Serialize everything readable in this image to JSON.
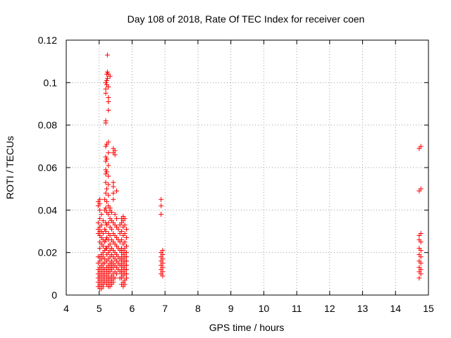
{
  "chart_data": {
    "type": "scatter",
    "title": "Day 108 of 2018, Rate Of TEC Index for receiver coen",
    "xlabel": "GPS time / hours",
    "ylabel": "ROTI / TECUs",
    "xlim": [
      4,
      15
    ],
    "ylim": [
      0,
      0.12
    ],
    "xticks": [
      "4",
      "5",
      "6",
      "7",
      "8",
      "9",
      "10",
      "11",
      "12",
      "13",
      "14",
      "15"
    ],
    "yticks": [
      "0",
      "0.02",
      "0.04",
      "0.06",
      "0.08",
      "0.1",
      "0.12"
    ],
    "grid": true,
    "marker": "+",
    "color": "#ff0000",
    "points": [
      [
        4.97,
        0.004
      ],
      [
        4.97,
        0.006
      ],
      [
        4.97,
        0.008
      ],
      [
        4.97,
        0.01
      ],
      [
        4.97,
        0.012
      ],
      [
        4.97,
        0.015
      ],
      [
        4.97,
        0.018
      ],
      [
        4.97,
        0.029
      ],
      [
        4.97,
        0.031
      ],
      [
        4.97,
        0.034
      ],
      [
        4.97,
        0.042
      ],
      [
        4.97,
        0.044
      ],
      [
        5.02,
        0.003
      ],
      [
        5.02,
        0.005
      ],
      [
        5.02,
        0.007
      ],
      [
        5.02,
        0.009
      ],
      [
        5.02,
        0.011
      ],
      [
        5.02,
        0.013
      ],
      [
        5.02,
        0.016
      ],
      [
        5.02,
        0.018
      ],
      [
        5.02,
        0.022
      ],
      [
        5.02,
        0.025
      ],
      [
        5.02,
        0.028
      ],
      [
        5.02,
        0.03
      ],
      [
        5.02,
        0.032
      ],
      [
        5.02,
        0.036
      ],
      [
        5.02,
        0.04
      ],
      [
        5.02,
        0.043
      ],
      [
        5.02,
        0.045
      ],
      [
        5.07,
        0.003
      ],
      [
        5.07,
        0.004
      ],
      [
        5.07,
        0.006
      ],
      [
        5.07,
        0.008
      ],
      [
        5.07,
        0.01
      ],
      [
        5.07,
        0.012
      ],
      [
        5.07,
        0.014
      ],
      [
        5.07,
        0.017
      ],
      [
        5.07,
        0.019
      ],
      [
        5.07,
        0.024
      ],
      [
        5.07,
        0.027
      ],
      [
        5.07,
        0.03
      ],
      [
        5.07,
        0.033
      ],
      [
        5.07,
        0.038
      ],
      [
        5.12,
        0.004
      ],
      [
        5.12,
        0.005
      ],
      [
        5.12,
        0.007
      ],
      [
        5.12,
        0.009
      ],
      [
        5.12,
        0.011
      ],
      [
        5.12,
        0.013
      ],
      [
        5.12,
        0.015
      ],
      [
        5.12,
        0.018
      ],
      [
        5.12,
        0.02
      ],
      [
        5.12,
        0.023
      ],
      [
        5.12,
        0.026
      ],
      [
        5.12,
        0.029
      ],
      [
        5.12,
        0.035
      ],
      [
        5.17,
        0.006
      ],
      [
        5.17,
        0.008
      ],
      [
        5.17,
        0.01
      ],
      [
        5.17,
        0.012
      ],
      [
        5.17,
        0.015
      ],
      [
        5.17,
        0.017
      ],
      [
        5.17,
        0.021
      ],
      [
        5.17,
        0.025
      ],
      [
        5.17,
        0.031
      ],
      [
        5.17,
        0.04
      ],
      [
        5.17,
        0.045
      ],
      [
        5.2,
        0.022
      ],
      [
        5.2,
        0.026
      ],
      [
        5.2,
        0.03
      ],
      [
        5.2,
        0.034
      ],
      [
        5.2,
        0.041
      ],
      [
        5.2,
        0.048
      ],
      [
        5.2,
        0.053
      ],
      [
        5.2,
        0.057
      ],
      [
        5.2,
        0.059
      ],
      [
        5.2,
        0.063
      ],
      [
        5.2,
        0.065
      ],
      [
        5.2,
        0.07
      ],
      [
        5.2,
        0.081
      ],
      [
        5.2,
        0.082
      ],
      [
        5.2,
        0.095
      ],
      [
        5.2,
        0.097
      ],
      [
        5.2,
        0.1
      ],
      [
        5.23,
        0.005
      ],
      [
        5.23,
        0.007
      ],
      [
        5.23,
        0.009
      ],
      [
        5.23,
        0.011
      ],
      [
        5.23,
        0.013
      ],
      [
        5.23,
        0.016
      ],
      [
        5.23,
        0.019
      ],
      [
        5.23,
        0.022
      ],
      [
        5.23,
        0.027
      ],
      [
        5.23,
        0.033
      ],
      [
        5.23,
        0.039
      ],
      [
        5.23,
        0.044
      ],
      [
        5.23,
        0.05
      ],
      [
        5.23,
        0.058
      ],
      [
        5.23,
        0.064
      ],
      [
        5.23,
        0.071
      ],
      [
        5.23,
        0.099
      ],
      [
        5.23,
        0.101
      ],
      [
        5.23,
        0.104
      ],
      [
        5.25,
        0.102
      ],
      [
        5.25,
        0.105
      ],
      [
        5.25,
        0.113
      ],
      [
        5.28,
        0.004
      ],
      [
        5.28,
        0.006
      ],
      [
        5.28,
        0.008
      ],
      [
        5.28,
        0.01
      ],
      [
        5.28,
        0.012
      ],
      [
        5.28,
        0.014
      ],
      [
        5.28,
        0.017
      ],
      [
        5.28,
        0.02
      ],
      [
        5.28,
        0.023
      ],
      [
        5.28,
        0.026
      ],
      [
        5.28,
        0.029
      ],
      [
        5.28,
        0.034
      ],
      [
        5.28,
        0.038
      ],
      [
        5.28,
        0.042
      ],
      [
        5.28,
        0.047
      ],
      [
        5.28,
        0.052
      ],
      [
        5.28,
        0.056
      ],
      [
        5.28,
        0.061
      ],
      [
        5.28,
        0.067
      ],
      [
        5.28,
        0.072
      ],
      [
        5.28,
        0.087
      ],
      [
        5.28,
        0.091
      ],
      [
        5.28,
        0.093
      ],
      [
        5.28,
        0.098
      ],
      [
        5.28,
        0.104
      ],
      [
        5.33,
        0.004
      ],
      [
        5.33,
        0.006
      ],
      [
        5.33,
        0.008
      ],
      [
        5.33,
        0.011
      ],
      [
        5.33,
        0.013
      ],
      [
        5.33,
        0.015
      ],
      [
        5.33,
        0.018
      ],
      [
        5.33,
        0.021
      ],
      [
        5.33,
        0.024
      ],
      [
        5.33,
        0.028
      ],
      [
        5.33,
        0.032
      ],
      [
        5.33,
        0.036
      ],
      [
        5.33,
        0.04
      ],
      [
        5.33,
        0.041
      ],
      [
        5.33,
        0.103
      ],
      [
        5.38,
        0.005
      ],
      [
        5.38,
        0.007
      ],
      [
        5.38,
        0.009
      ],
      [
        5.38,
        0.012
      ],
      [
        5.38,
        0.014
      ],
      [
        5.38,
        0.016
      ],
      [
        5.38,
        0.019
      ],
      [
        5.38,
        0.022
      ],
      [
        5.38,
        0.026
      ],
      [
        5.38,
        0.031
      ],
      [
        5.38,
        0.035
      ],
      [
        5.38,
        0.039
      ],
      [
        5.43,
        0.006
      ],
      [
        5.43,
        0.008
      ],
      [
        5.43,
        0.01
      ],
      [
        5.43,
        0.013
      ],
      [
        5.43,
        0.015
      ],
      [
        5.43,
        0.018
      ],
      [
        5.43,
        0.021
      ],
      [
        5.43,
        0.025
      ],
      [
        5.43,
        0.029
      ],
      [
        5.43,
        0.034
      ],
      [
        5.43,
        0.045
      ],
      [
        5.43,
        0.048
      ],
      [
        5.43,
        0.051
      ],
      [
        5.43,
        0.053
      ],
      [
        5.43,
        0.067
      ],
      [
        5.43,
        0.069
      ],
      [
        5.48,
        0.008
      ],
      [
        5.48,
        0.011
      ],
      [
        5.48,
        0.014
      ],
      [
        5.48,
        0.017
      ],
      [
        5.48,
        0.02
      ],
      [
        5.48,
        0.024
      ],
      [
        5.48,
        0.028
      ],
      [
        5.48,
        0.033
      ],
      [
        5.48,
        0.038
      ],
      [
        5.48,
        0.066
      ],
      [
        5.48,
        0.068
      ],
      [
        5.53,
        0.01
      ],
      [
        5.53,
        0.013
      ],
      [
        5.53,
        0.016
      ],
      [
        5.53,
        0.019
      ],
      [
        5.53,
        0.023
      ],
      [
        5.53,
        0.027
      ],
      [
        5.53,
        0.032
      ],
      [
        5.53,
        0.036
      ],
      [
        5.53,
        0.049
      ],
      [
        5.58,
        0.012
      ],
      [
        5.58,
        0.015
      ],
      [
        5.58,
        0.018
      ],
      [
        5.58,
        0.022
      ],
      [
        5.58,
        0.026
      ],
      [
        5.58,
        0.031
      ],
      [
        5.63,
        0.008
      ],
      [
        5.63,
        0.011
      ],
      [
        5.63,
        0.014
      ],
      [
        5.63,
        0.017
      ],
      [
        5.63,
        0.021
      ],
      [
        5.63,
        0.025
      ],
      [
        5.63,
        0.029
      ],
      [
        5.63,
        0.033
      ],
      [
        5.68,
        0.005
      ],
      [
        5.68,
        0.008
      ],
      [
        5.68,
        0.01
      ],
      [
        5.68,
        0.012
      ],
      [
        5.68,
        0.014
      ],
      [
        5.68,
        0.016
      ],
      [
        5.68,
        0.018
      ],
      [
        5.68,
        0.02
      ],
      [
        5.68,
        0.022
      ],
      [
        5.68,
        0.026
      ],
      [
        5.68,
        0.03
      ],
      [
        5.68,
        0.034
      ],
      [
        5.68,
        0.036
      ],
      [
        5.73,
        0.004
      ],
      [
        5.73,
        0.006
      ],
      [
        5.73,
        0.009
      ],
      [
        5.73,
        0.011
      ],
      [
        5.73,
        0.013
      ],
      [
        5.73,
        0.015
      ],
      [
        5.73,
        0.017
      ],
      [
        5.73,
        0.019
      ],
      [
        5.73,
        0.021
      ],
      [
        5.73,
        0.024
      ],
      [
        5.73,
        0.028
      ],
      [
        5.73,
        0.032
      ],
      [
        5.73,
        0.035
      ],
      [
        5.73,
        0.037
      ],
      [
        5.78,
        0.005
      ],
      [
        5.78,
        0.007
      ],
      [
        5.78,
        0.01
      ],
      [
        5.78,
        0.012
      ],
      [
        5.78,
        0.014
      ],
      [
        5.78,
        0.016
      ],
      [
        5.78,
        0.018
      ],
      [
        5.78,
        0.02
      ],
      [
        5.78,
        0.022
      ],
      [
        5.78,
        0.025
      ],
      [
        5.78,
        0.029
      ],
      [
        5.78,
        0.033
      ],
      [
        5.78,
        0.036
      ],
      [
        5.83,
        0.008
      ],
      [
        5.83,
        0.01
      ],
      [
        5.83,
        0.012
      ],
      [
        5.83,
        0.014
      ],
      [
        5.83,
        0.016
      ],
      [
        5.83,
        0.018
      ],
      [
        5.83,
        0.02
      ],
      [
        5.83,
        0.023
      ],
      [
        5.83,
        0.027
      ],
      [
        5.83,
        0.031
      ],
      [
        6.88,
        0.01
      ],
      [
        6.88,
        0.012
      ],
      [
        6.88,
        0.014
      ],
      [
        6.88,
        0.016
      ],
      [
        6.88,
        0.018
      ],
      [
        6.88,
        0.02
      ],
      [
        6.88,
        0.038
      ],
      [
        6.88,
        0.042
      ],
      [
        6.88,
        0.045
      ],
      [
        6.93,
        0.009
      ],
      [
        6.93,
        0.011
      ],
      [
        6.93,
        0.013
      ],
      [
        6.93,
        0.015
      ],
      [
        6.93,
        0.017
      ],
      [
        6.93,
        0.019
      ],
      [
        6.93,
        0.021
      ],
      [
        14.72,
        0.008
      ],
      [
        14.72,
        0.011
      ],
      [
        14.72,
        0.013
      ],
      [
        14.72,
        0.016
      ],
      [
        14.72,
        0.019
      ],
      [
        14.72,
        0.022
      ],
      [
        14.72,
        0.026
      ],
      [
        14.72,
        0.028
      ],
      [
        14.72,
        0.049
      ],
      [
        14.72,
        0.069
      ],
      [
        14.77,
        0.01
      ],
      [
        14.77,
        0.012
      ],
      [
        14.77,
        0.015
      ],
      [
        14.77,
        0.018
      ],
      [
        14.77,
        0.021
      ],
      [
        14.77,
        0.025
      ],
      [
        14.77,
        0.029
      ],
      [
        14.77,
        0.05
      ],
      [
        14.77,
        0.07
      ]
    ]
  }
}
